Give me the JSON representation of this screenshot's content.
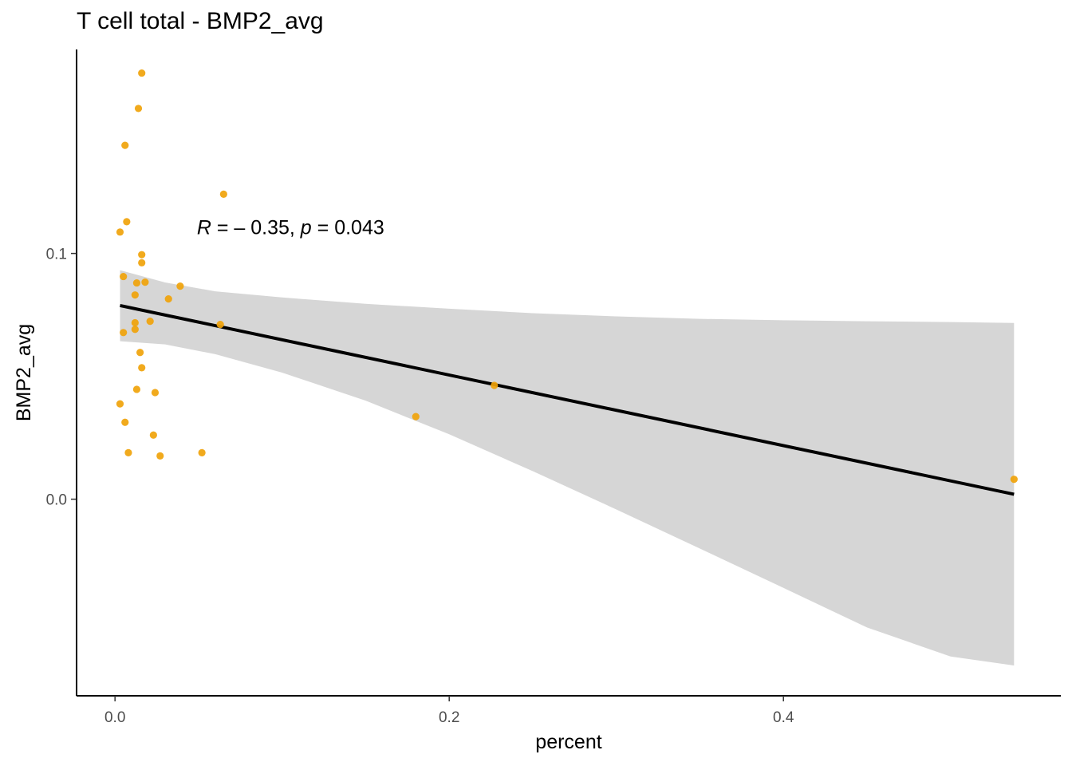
{
  "chart_data": {
    "type": "scatter",
    "title": "T cell total - BMP2_avg",
    "xlabel": "percent",
    "ylabel": "BMP2_avg",
    "x_ticks": [
      0.0,
      0.2,
      0.4
    ],
    "x_tick_labels": [
      "0.0",
      "0.2",
      "0.4"
    ],
    "y_ticks": [
      0.0,
      0.1
    ],
    "y_tick_labels": [
      "0.0",
      "0.1"
    ],
    "xlim": [
      -0.023,
      0.566
    ],
    "ylim": [
      -0.08,
      0.183
    ],
    "grid": false,
    "point_color": "#F0A30A",
    "line_color": "#000000",
    "band_color": "#D6D6D6",
    "annotation": {
      "r_label": "R",
      "r_value": " = – 0.35, ",
      "p_label": "p",
      "p_value": " = 0.043",
      "x": 0.049,
      "y": 0.1107
    },
    "points": [
      {
        "x": 0.016,
        "y": 0.1734
      },
      {
        "x": 0.014,
        "y": 0.159
      },
      {
        "x": 0.006,
        "y": 0.144
      },
      {
        "x": 0.065,
        "y": 0.1241
      },
      {
        "x": 0.007,
        "y": 0.1129
      },
      {
        "x": 0.003,
        "y": 0.1087
      },
      {
        "x": 0.016,
        "y": 0.0995
      },
      {
        "x": 0.016,
        "y": 0.0962
      },
      {
        "x": 0.005,
        "y": 0.0906
      },
      {
        "x": 0.013,
        "y": 0.088
      },
      {
        "x": 0.018,
        "y": 0.0883
      },
      {
        "x": 0.039,
        "y": 0.0867
      },
      {
        "x": 0.012,
        "y": 0.0831
      },
      {
        "x": 0.032,
        "y": 0.0815
      },
      {
        "x": 0.021,
        "y": 0.0724
      },
      {
        "x": 0.012,
        "y": 0.0718
      },
      {
        "x": 0.063,
        "y": 0.0711
      },
      {
        "x": 0.012,
        "y": 0.0691
      },
      {
        "x": 0.005,
        "y": 0.0678
      },
      {
        "x": 0.015,
        "y": 0.0597
      },
      {
        "x": 0.016,
        "y": 0.0535
      },
      {
        "x": 0.227,
        "y": 0.0463
      },
      {
        "x": 0.013,
        "y": 0.0447
      },
      {
        "x": 0.024,
        "y": 0.0434
      },
      {
        "x": 0.003,
        "y": 0.0388
      },
      {
        "x": 0.18,
        "y": 0.0336
      },
      {
        "x": 0.006,
        "y": 0.0313
      },
      {
        "x": 0.023,
        "y": 0.0261
      },
      {
        "x": 0.052,
        "y": 0.0189
      },
      {
        "x": 0.008,
        "y": 0.0189
      },
      {
        "x": 0.027,
        "y": 0.0176
      },
      {
        "x": 0.538,
        "y": 0.0081
      }
    ],
    "fit_line": {
      "x": [
        0.003,
        0.538
      ],
      "y": [
        0.0788,
        0.002
      ]
    },
    "confidence_band": [
      {
        "x": 0.003,
        "lower": 0.0643,
        "upper": 0.0932
      },
      {
        "x": 0.03,
        "lower": 0.063,
        "upper": 0.0882
      },
      {
        "x": 0.06,
        "lower": 0.059,
        "upper": 0.0846
      },
      {
        "x": 0.1,
        "lower": 0.0515,
        "upper": 0.0821
      },
      {
        "x": 0.15,
        "lower": 0.0401,
        "upper": 0.0795
      },
      {
        "x": 0.2,
        "lower": 0.0264,
        "upper": 0.0775
      },
      {
        "x": 0.25,
        "lower": 0.0114,
        "upper": 0.0757
      },
      {
        "x": 0.3,
        "lower": -0.0042,
        "upper": 0.0744
      },
      {
        "x": 0.35,
        "lower": -0.0201,
        "upper": 0.0734
      },
      {
        "x": 0.4,
        "lower": -0.0361,
        "upper": 0.0728
      },
      {
        "x": 0.45,
        "lower": -0.0522,
        "upper": 0.0724
      },
      {
        "x": 0.5,
        "lower": -0.064,
        "upper": 0.0721
      },
      {
        "x": 0.538,
        "lower": -0.0677,
        "upper": 0.0717
      }
    ]
  }
}
